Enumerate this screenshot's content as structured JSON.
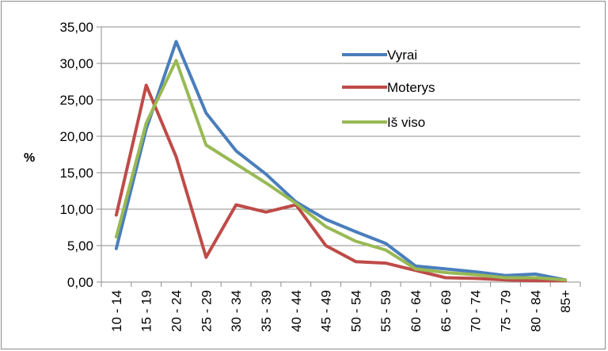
{
  "chart_data": {
    "type": "line",
    "title": "",
    "xlabel": "",
    "ylabel": "%",
    "ylim": [
      0,
      35
    ],
    "yticks": [
      "0,00",
      "5,00",
      "10,00",
      "15,00",
      "20,00",
      "25,00",
      "30,00",
      "35,00"
    ],
    "grid": "horizontal",
    "legend_position": "top-right",
    "categories": [
      "10 - 14",
      "15 - 19",
      "20 - 24",
      "25 - 29",
      "30 - 34",
      "35 - 39",
      "40 - 44",
      "45 - 49",
      "50 - 54",
      "55 - 59",
      "60 - 64",
      "65 - 69",
      "70 - 74",
      "75 - 79",
      "80 - 84",
      "85+"
    ],
    "series": [
      {
        "name": "Vyrai",
        "color": "#4a7ebb",
        "values": [
          4.6,
          21.0,
          33.0,
          23.2,
          18.0,
          14.8,
          11.0,
          8.6,
          6.9,
          5.3,
          2.2,
          1.8,
          1.4,
          0.9,
          1.1,
          0.3
        ]
      },
      {
        "name": "Moterys",
        "color": "#be4b48",
        "values": [
          9.2,
          27.0,
          17.2,
          3.4,
          10.6,
          9.6,
          10.6,
          5.0,
          2.8,
          2.6,
          1.6,
          0.6,
          0.5,
          0.3,
          0.2,
          0.2
        ]
      },
      {
        "name": "Iš viso",
        "color": "#98b954",
        "values": [
          6.2,
          21.8,
          30.4,
          18.8,
          16.2,
          13.6,
          10.8,
          7.6,
          5.6,
          4.4,
          1.8,
          1.3,
          1.0,
          0.6,
          0.6,
          0.3
        ]
      }
    ]
  }
}
